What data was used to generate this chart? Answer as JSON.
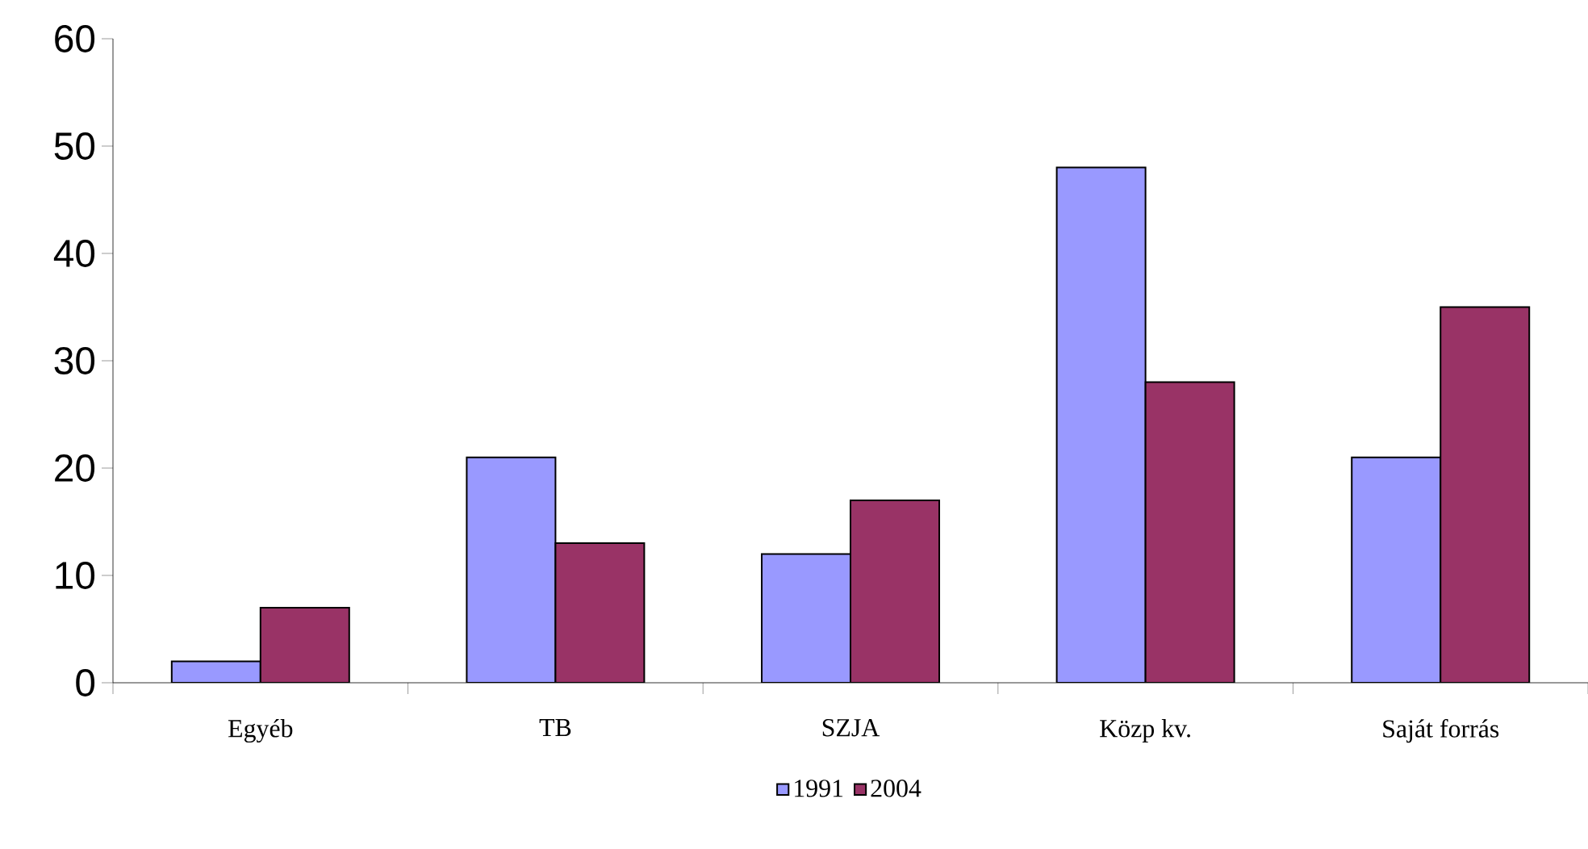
{
  "chart_data": {
    "type": "bar",
    "categories": [
      "Egyéb",
      "TB",
      "SZJA",
      "Közp kv.",
      "Saját forrás"
    ],
    "series": [
      {
        "name": "1991",
        "color": "#9999ff",
        "values": [
          2,
          21,
          12,
          48,
          21
        ]
      },
      {
        "name": "2004",
        "color": "#993366",
        "values": [
          7,
          13,
          17,
          28,
          35
        ]
      }
    ],
    "ylim": [
      0,
      60
    ],
    "yticks": [
      0,
      10,
      20,
      30,
      40,
      50,
      60
    ],
    "grid": false,
    "legend": "bottom"
  }
}
